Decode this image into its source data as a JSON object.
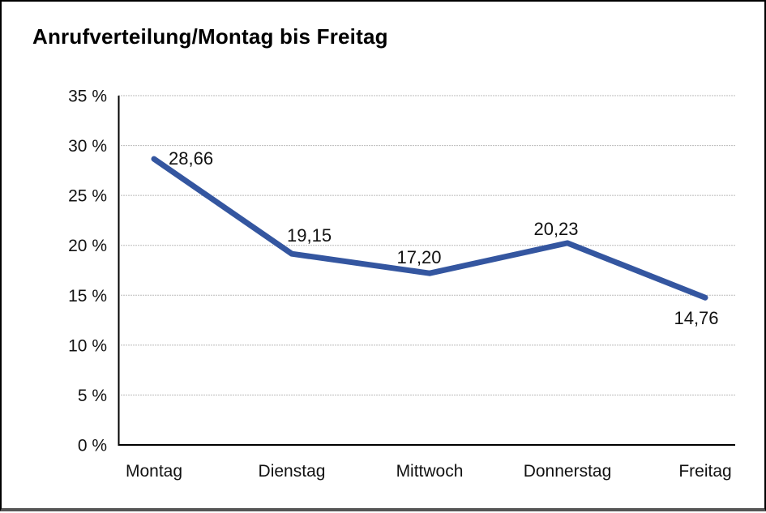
{
  "window": {
    "background": "#ffffff",
    "frame_border_color": "#000000",
    "frame_bottom_border_color": "#555555"
  },
  "chart_data": {
    "type": "line",
    "title": "Anrufverteilung/Montag bis Freitag",
    "categories": [
      "Montag",
      "Dienstag",
      "Mittwoch",
      "Donnerstag",
      "Freitag"
    ],
    "series": [
      {
        "name": "Anrufverteilung",
        "values": [
          28.66,
          19.15,
          17.2,
          20.23,
          14.76
        ]
      }
    ],
    "value_labels": [
      "28,66",
      "19,15",
      "17,20",
      "20,23",
      "14,76"
    ],
    "y_ticks": [
      0,
      5,
      10,
      15,
      20,
      25,
      30,
      35
    ],
    "y_tick_labels": [
      "0 %",
      "5 %",
      "10 %",
      "15 %",
      "20 %",
      "25 %",
      "30 %",
      "35 %"
    ],
    "ylim": [
      0,
      35
    ],
    "xlabel": "",
    "ylabel": "",
    "grid": "dotted-horizontal",
    "legend": "none",
    "line_color": "#3456A0",
    "label_layout": {
      "anchors": [
        "start",
        "start",
        "middle",
        "middle",
        "middle"
      ],
      "dx": [
        18,
        -6,
        -13,
        -14,
        -11
      ],
      "dy": [
        7,
        -15,
        -12,
        -10,
        33
      ]
    }
  }
}
